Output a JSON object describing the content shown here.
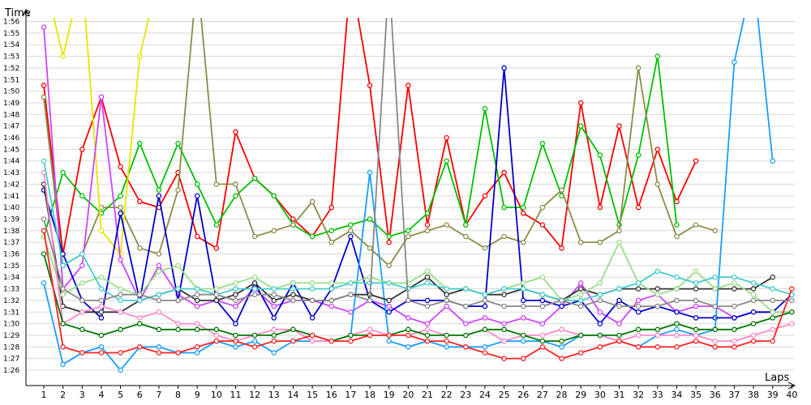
{
  "chart_data": {
    "type": "line",
    "xlabel": "Laps",
    "ylabel": "Time",
    "x": [
      1,
      2,
      3,
      4,
      5,
      6,
      7,
      8,
      9,
      10,
      11,
      12,
      13,
      14,
      15,
      16,
      17,
      18,
      19,
      20,
      21,
      22,
      23,
      24,
      25,
      26,
      27,
      28,
      29,
      30,
      31,
      32,
      33,
      34,
      35,
      36,
      37,
      38,
      39,
      40
    ],
    "y_ticks": [
      "1:26",
      "1:27",
      "1:28",
      "1:29",
      "1:30",
      "1:31",
      "1:32",
      "1:33",
      "1:34",
      "1:35",
      "1:36",
      "1:37",
      "1:38",
      "1:39",
      "1:40",
      "1:41",
      "1:42",
      "1:43",
      "1:44",
      "1:45",
      "1:46",
      "1:47",
      "1:48",
      "1:49",
      "1:50",
      "1:51",
      "1:52",
      "1:53",
      "1:54",
      "1:55",
      "1:56"
    ],
    "ylim_seconds": [
      85,
      117
    ],
    "grid": true,
    "series": [
      {
        "color": "#ff0000",
        "values": [
          110.5,
          96,
          105,
          109.5,
          103.5,
          100.5,
          100,
          103,
          97.5,
          96.5,
          106.5,
          102.5,
          101,
          99,
          97.5,
          100,
          120,
          110.5,
          97,
          110.5,
          98.5,
          106,
          98.5,
          101,
          103,
          99.5,
          98.5,
          96.5,
          109,
          100,
          107,
          100,
          105,
          100.5,
          104,
          null,
          null,
          null,
          null,
          null
        ]
      },
      {
        "color": "#00c000",
        "values": [
          97.5,
          103,
          101,
          99.5,
          101,
          105.5,
          101.5,
          105.5,
          102,
          98.5,
          101,
          102.5,
          101,
          98.5,
          97.5,
          98,
          98.5,
          99,
          97.5,
          98,
          99.5,
          104,
          98.5,
          108.5,
          100,
          100,
          105.5,
          101,
          107,
          104.5,
          98.5,
          104.5,
          113,
          98.5,
          null,
          null,
          null,
          null,
          null,
          null
        ]
      },
      {
        "color": "#8b8b4a",
        "values": [
          109.5,
          95,
          96,
          100,
          100,
          96.5,
          96,
          101.5,
          120,
          102,
          102,
          97.5,
          98,
          98.5,
          100.5,
          97,
          98,
          96.5,
          95,
          97.5,
          98,
          98.5,
          97.5,
          96.5,
          97.5,
          97,
          100,
          101.5,
          97,
          97,
          98,
          112,
          102,
          97.5,
          98.5,
          98,
          null,
          null,
          null,
          null
        ]
      },
      {
        "color": "#e6e600",
        "values": [
          120,
          113,
          120,
          98,
          96,
          113,
          120,
          null,
          null,
          null,
          null,
          null,
          null,
          null,
          null,
          null,
          null,
          null,
          null,
          null,
          null,
          null,
          null,
          null,
          null,
          null,
          null,
          null,
          null,
          null,
          null,
          null,
          null,
          null,
          null,
          null,
          null,
          null,
          null,
          null
        ]
      },
      {
        "color": "#cc44ff",
        "values": [
          115.5,
          93,
          95,
          109.5,
          95.5,
          92,
          95,
          92.5,
          91.5,
          92,
          91.5,
          93,
          91.5,
          92,
          92,
          91.5,
          91,
          92,
          91.5,
          90.5,
          90,
          91.5,
          90,
          90.5,
          90,
          90.5,
          90,
          91.5,
          93.5,
          91,
          90,
          92,
          92.5,
          91,
          91.5,
          91.5,
          90.5,
          91,
          91,
          91
        ]
      },
      {
        "color": "#0000cc",
        "values": [
          101.5,
          96,
          92,
          90.5,
          99.5,
          92,
          101,
          92,
          101,
          92,
          90,
          93.5,
          90.5,
          93.5,
          90.5,
          93,
          97.5,
          92,
          91,
          92,
          92,
          92,
          91.5,
          91.5,
          112,
          92,
          92,
          91.5,
          92,
          90,
          92,
          91,
          91.5,
          91,
          90.5,
          90.5,
          90.5,
          91,
          91,
          92.5
        ]
      },
      {
        "color": "#1a9dff",
        "values": [
          93.5,
          86.5,
          87.5,
          88,
          86,
          88,
          88,
          87.5,
          87.5,
          88.5,
          88,
          88.5,
          87.5,
          88.5,
          88.5,
          88.5,
          89,
          103,
          88.5,
          88,
          88.5,
          88,
          88,
          88,
          88.5,
          88.5,
          88.5,
          88,
          89,
          89,
          88.5,
          88,
          89,
          89.5,
          89,
          89.5,
          112.5,
          120,
          104,
          null
        ]
      },
      {
        "color": "#333333",
        "values": [
          102,
          91.5,
          91,
          91,
          91,
          92,
          92.5,
          93,
          92,
          92,
          92.5,
          93.5,
          92,
          92.5,
          92,
          92,
          92.5,
          92.5,
          92,
          93,
          94,
          92.5,
          93,
          92.5,
          92.5,
          93,
          92.5,
          92,
          93,
          92.5,
          93,
          93,
          93,
          93,
          93,
          93,
          93,
          93,
          94,
          null
        ]
      },
      {
        "color": "#99dd88",
        "values": [
          97.5,
          92.5,
          93.5,
          94,
          93,
          92.5,
          94.5,
          95,
          93,
          93,
          93.5,
          94,
          93,
          93.5,
          93.5,
          93.5,
          93.5,
          94,
          93.5,
          93.5,
          94.5,
          93,
          93,
          92.5,
          93,
          93.5,
          94,
          92,
          92.5,
          93.5,
          97,
          93.5,
          92.5,
          93,
          94.5,
          93,
          93.5,
          92.5,
          91,
          91
        ]
      },
      {
        "color": "#ff88cc",
        "values": [
          103,
          90,
          91,
          91.5,
          91,
          90.5,
          91,
          90,
          90,
          89,
          88.5,
          89,
          89.5,
          89.5,
          88.5,
          88.5,
          89,
          89.5,
          89,
          89,
          89.5,
          89,
          89,
          89.5,
          88.5,
          89,
          89,
          89.5,
          89,
          89,
          88.5,
          89,
          89,
          89,
          89,
          88.5,
          88.5,
          89,
          89.5,
          90
        ]
      },
      {
        "color": "#44cccc",
        "values": [
          104,
          95,
          96,
          93,
          92,
          92,
          92.5,
          93,
          93,
          92.5,
          93,
          93,
          93,
          93,
          93,
          93,
          93.5,
          93.5,
          93.5,
          93,
          93.5,
          93,
          93,
          92.5,
          93,
          93,
          92.5,
          92,
          92,
          92.5,
          93,
          93.5,
          94.5,
          94,
          93.5,
          94,
          94,
          93.5,
          93,
          92.5
        ]
      },
      {
        "color": "#007700",
        "values": [
          96,
          90,
          89.5,
          89,
          89.5,
          90,
          89.5,
          89.5,
          89.5,
          89.5,
          89,
          89,
          89,
          89.5,
          89,
          88.5,
          89,
          89,
          89,
          89.5,
          89,
          89,
          89,
          89.5,
          89.5,
          89,
          88.5,
          88.5,
          89,
          89,
          89,
          89.5,
          89.5,
          90,
          89.5,
          89.5,
          89.5,
          90,
          90.5,
          91
        ]
      },
      {
        "color": "#ff2222",
        "values": [
          98,
          88,
          87.5,
          87.5,
          87.5,
          88,
          87.5,
          87.5,
          88,
          88.5,
          88.5,
          88,
          88.5,
          88.5,
          89,
          88.5,
          88.5,
          89,
          89,
          89,
          88.5,
          88.5,
          88,
          87.5,
          87,
          87,
          88,
          87,
          87.5,
          88,
          88.5,
          88,
          88,
          88,
          88.5,
          88,
          88,
          88.5,
          88.5,
          93
        ]
      },
      {
        "color": "#888888",
        "values": [
          99,
          93,
          92,
          92,
          92.5,
          92.5,
          92,
          92,
          92.5,
          92.5,
          92,
          92.5,
          92.5,
          92,
          92,
          92,
          92.5,
          92,
          120,
          92,
          91.5,
          92,
          91.5,
          92,
          91.5,
          91.5,
          91.5,
          92,
          91.5,
          92,
          91.5,
          91.5,
          91.5,
          92,
          92,
          91.5,
          91.5,
          92,
          92,
          92
        ]
      }
    ]
  }
}
